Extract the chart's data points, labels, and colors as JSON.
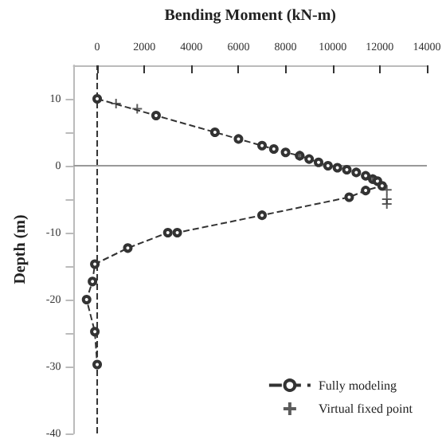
{
  "chart_data": {
    "type": "line",
    "xlabel": "Bending Moment (kN-m)",
    "ylabel": "Depth (m)",
    "xlim": [
      -1000,
      14000
    ],
    "xticks": [
      0,
      2000,
      4000,
      6000,
      8000,
      10000,
      12000,
      14000
    ],
    "ylim": [
      -40,
      15
    ],
    "yticks": [
      {
        "value": -40,
        "label": "-40"
      },
      -30,
      -20,
      {
        "value": -25,
        "label": null
      },
      {
        "value": -15,
        "label": null
      },
      -10,
      {
        "value": -5,
        "label": null
      },
      0,
      {
        "value": 5,
        "label": null
      },
      10
    ],
    "grid": false,
    "legend": "bottom right",
    "series": [
      {
        "name": "Fully modeling",
        "marker": "circle",
        "line_style": "dashed",
        "color": "#333333",
        "x": [
          0,
          2500,
          5000,
          6000,
          7000,
          7500,
          8000,
          8600,
          9000,
          9400,
          9800,
          10200,
          10600,
          11000,
          11400,
          11700,
          11900,
          12100,
          11400,
          10700,
          7000,
          3400,
          3000,
          1300,
          -100,
          -200,
          -450,
          -100,
          0
        ],
        "values": [
          10,
          7.5,
          5,
          4,
          3,
          2.5,
          2,
          1.5,
          1,
          0.5,
          0,
          -0.3,
          -0.6,
          -1,
          -1.5,
          -2,
          -2.3,
          -3,
          -3.7,
          -4.7,
          -7.4,
          -10,
          -10,
          -12.3,
          -14.7,
          -17.3,
          -20,
          -24.8,
          -29.7
        ]
      },
      {
        "name": "Virtual fixed point",
        "type": "scatter",
        "marker": "cross",
        "color": "#333333",
        "x": [
          800,
          1700,
          8600,
          11700,
          12300,
          12300,
          12300
        ],
        "values": [
          9.3,
          8.5,
          1.5,
          -2,
          -3.6,
          -5,
          -5.7
        ]
      }
    ],
    "ref_lines": [
      {
        "axis": "x",
        "value": 0,
        "color": "#333333",
        "line_style": "dashed"
      },
      {
        "axis": "y",
        "value": 0,
        "color": "#999999",
        "line_style": "solid"
      }
    ]
  }
}
